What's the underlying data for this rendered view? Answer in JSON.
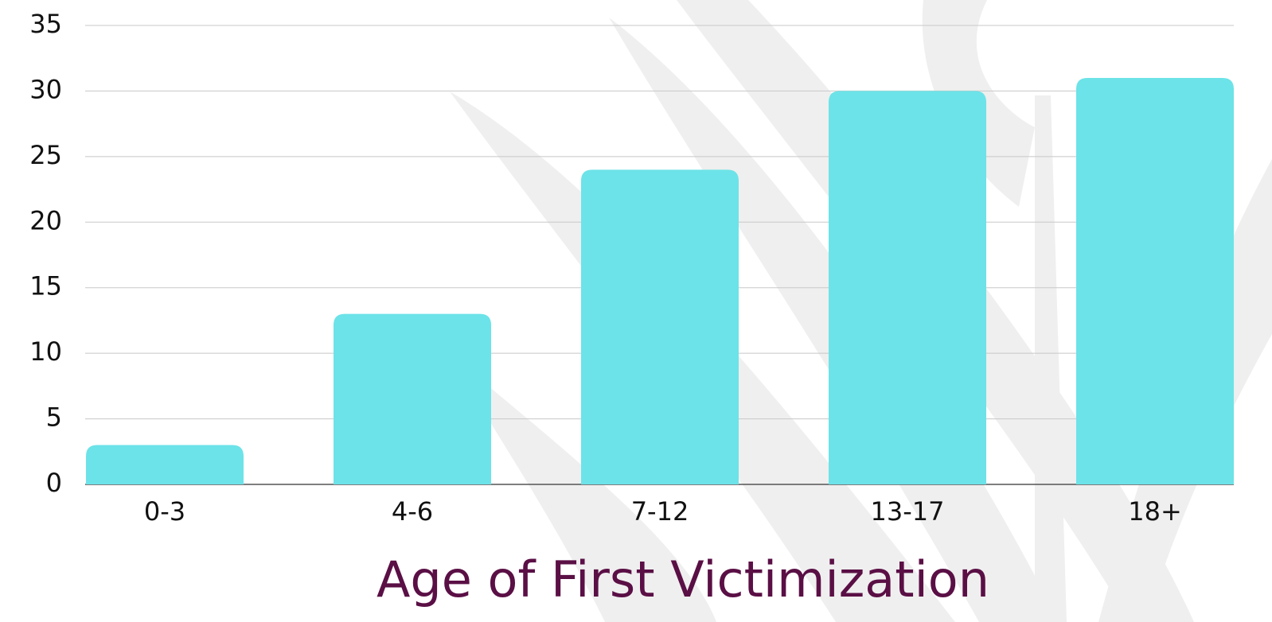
{
  "chart_data": {
    "type": "bar",
    "x_label": "Age of First Victimization",
    "categories": [
      "0-3",
      "4-6",
      "7-12",
      "13-17",
      "18+"
    ],
    "values": [
      3,
      13,
      24,
      30,
      31
    ],
    "color": "#6ce3e8",
    "ylim": [
      0,
      35
    ],
    "yticks": [
      0,
      5,
      10,
      15,
      20,
      25,
      30,
      35
    ],
    "grid": true
  }
}
